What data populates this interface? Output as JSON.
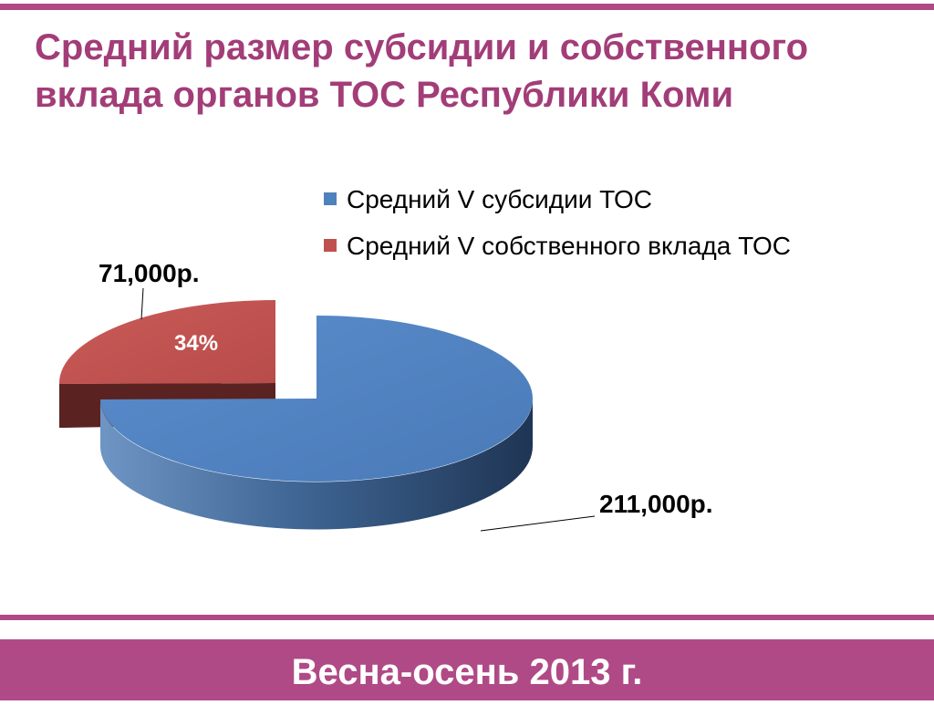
{
  "slide": {
    "title": "Средний размер субсидии и собственного вклада органов ТОС Республики Коми",
    "footer": "Весна-осень 2013 г."
  },
  "colors": {
    "accent": "#b04a86",
    "title": "#a23d78",
    "series_subsidy": "#4f81bd",
    "series_own": "#c0504d"
  },
  "chart_data": {
    "type": "pie",
    "title": "",
    "categories": [
      "Средний V субсидии ТОС",
      "Средний V собственного вклада ТОС"
    ],
    "values": [
      211000,
      71000
    ],
    "value_labels": [
      "211,000р.",
      "71,000р."
    ],
    "percent_labels": [
      "",
      "34%"
    ],
    "legend": [
      "Средний V субсидии ТОС",
      "Средний V собственного вклада ТОС"
    ],
    "legend_position": "top-right",
    "style": "3d-exploded"
  }
}
